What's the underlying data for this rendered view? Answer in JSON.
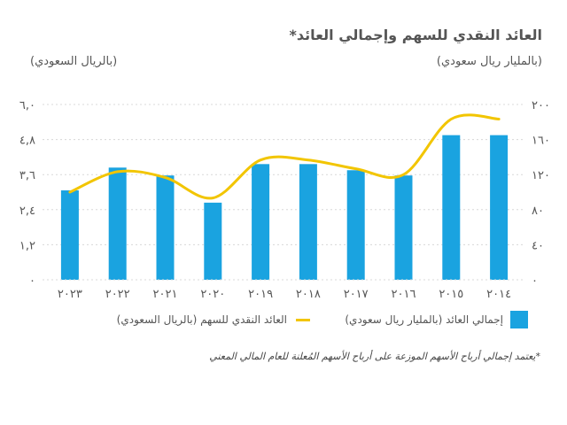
{
  "title": "العائد النقدي للسهم وإجمالي العائد*",
  "left_unit": "(بالريال السعودي)",
  "right_unit": "(بالمليار ريال سعودي)",
  "footnote": "*يعتمد إجمالي أرباح الأسهم الموزعة على أرباح الأسهم المُعلنة للعام المالي المعني",
  "colors": {
    "bar": "#1aa3e0",
    "line": "#f2c500",
    "grid": "#d8d8d8",
    "text": "#555555"
  },
  "chart_data": {
    "type": "bar",
    "categories": [
      "٢٠٢٣",
      "٢٠٢٢",
      "٢٠٢١",
      "٢٠٢٠",
      "٢٠١٩",
      "٢٠١٨",
      "٢٠١٧",
      "٢٠١٦",
      "٢٠١٥",
      "٢٠١٤"
    ],
    "series": [
      {
        "name": "إجمالي العائد (بالمليار ريال سعودي)",
        "type": "bar",
        "axis": "right",
        "values": [
          102,
          128,
          119,
          88,
          132,
          132,
          125,
          119,
          165,
          165
        ]
      },
      {
        "name": "العائد النقدي للسهم (بالريال السعودي)",
        "type": "line",
        "axis": "left",
        "values": [
          3.0,
          3.7,
          3.5,
          2.8,
          4.1,
          4.1,
          3.8,
          3.6,
          5.5,
          5.5
        ]
      }
    ],
    "ylim_left": [
      0,
      6
    ],
    "ylim_right": [
      0,
      200
    ],
    "yticks_left": [
      "٠",
      "١,٢",
      "٢,٤",
      "٣,٦",
      "٤,٨",
      "٦,٠"
    ],
    "yticks_right": [
      "٠",
      "٤٠",
      "٨٠",
      "١٢٠",
      "١٦٠",
      "٢٠٠"
    ],
    "grid": true
  }
}
